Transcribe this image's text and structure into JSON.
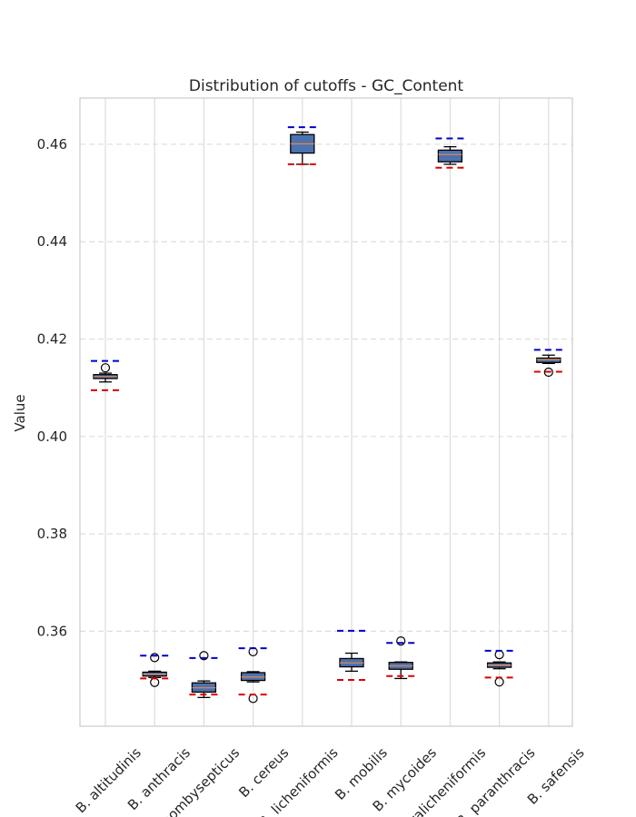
{
  "chart_data": {
    "type": "boxplot",
    "title": "Distribution of cutoffs - GC_Content",
    "xlabel": "",
    "ylabel": "Value",
    "ylim": [
      0.3405,
      0.4695
    ],
    "yticks": [
      0.36,
      0.38,
      0.4,
      0.42,
      0.44,
      0.46
    ],
    "ytick_labels": [
      "0.36",
      "0.38",
      "0.40",
      "0.42",
      "0.44",
      "0.46"
    ],
    "grid": true,
    "categories": [
      "B. altitudinis",
      "B. anthracis",
      "B. bombysepticus",
      "B. cereus",
      "B. licheniformis",
      "B. mobilis",
      "B. mycoides",
      "B. paralicheniformis",
      "B. paranthracis",
      "B. safensis"
    ],
    "boxes": [
      {
        "whislo": 0.4112,
        "q1": 0.4119,
        "med": 0.4123,
        "q3": 0.4127,
        "whishi": 0.413,
        "fliers": [
          0.4141
        ],
        "cutoff_high": 0.4155,
        "cutoff_low": 0.4095
      },
      {
        "whislo": 0.3505,
        "q1": 0.3508,
        "med": 0.3512,
        "q3": 0.3516,
        "whishi": 0.3518,
        "fliers": [
          0.3546,
          0.3495
        ],
        "cutoff_high": 0.355,
        "cutoff_low": 0.3503
      },
      {
        "whislo": 0.3464,
        "q1": 0.3475,
        "med": 0.3484,
        "q3": 0.3494,
        "whishi": 0.3498,
        "fliers": [
          0.355
        ],
        "cutoff_high": 0.3545,
        "cutoff_low": 0.347
      },
      {
        "whislo": 0.3496,
        "q1": 0.3499,
        "med": 0.3506,
        "q3": 0.3515,
        "whishi": 0.3517,
        "fliers": [
          0.3558,
          0.3462
        ],
        "cutoff_high": 0.3565,
        "cutoff_low": 0.347
      },
      {
        "whislo": 0.4559,
        "q1": 0.4582,
        "med": 0.4601,
        "q3": 0.462,
        "whishi": 0.4625,
        "fliers": [],
        "cutoff_high": 0.4635,
        "cutoff_low": 0.4559
      },
      {
        "whislo": 0.3518,
        "q1": 0.3527,
        "med": 0.3535,
        "q3": 0.3544,
        "whishi": 0.3555,
        "fliers": [],
        "cutoff_high": 0.3601,
        "cutoff_low": 0.35
      },
      {
        "whislo": 0.3503,
        "q1": 0.3522,
        "med": 0.3529,
        "q3": 0.3536,
        "whishi": 0.3537,
        "fliers": [
          0.358
        ],
        "cutoff_high": 0.3576,
        "cutoff_low": 0.3508
      },
      {
        "whislo": 0.4559,
        "q1": 0.4564,
        "med": 0.4579,
        "q3": 0.4588,
        "whishi": 0.4595,
        "fliers": [],
        "cutoff_high": 0.4612,
        "cutoff_low": 0.4552
      },
      {
        "whislo": 0.3523,
        "q1": 0.3526,
        "med": 0.353,
        "q3": 0.3535,
        "whishi": 0.3537,
        "fliers": [
          0.3552,
          0.3496
        ],
        "cutoff_high": 0.356,
        "cutoff_low": 0.3505
      },
      {
        "whislo": 0.415,
        "q1": 0.4152,
        "med": 0.4158,
        "q3": 0.4161,
        "whishi": 0.4167,
        "fliers": [
          0.4132
        ],
        "cutoff_high": 0.4178,
        "cutoff_low": 0.4133
      }
    ],
    "colors": {
      "box_fill": "#4c72b0",
      "median": "#dd8452",
      "cutoff_high": "#0000cc",
      "cutoff_low": "#dd0000",
      "grid": "#dddddd",
      "frame": "#cccccc"
    }
  }
}
